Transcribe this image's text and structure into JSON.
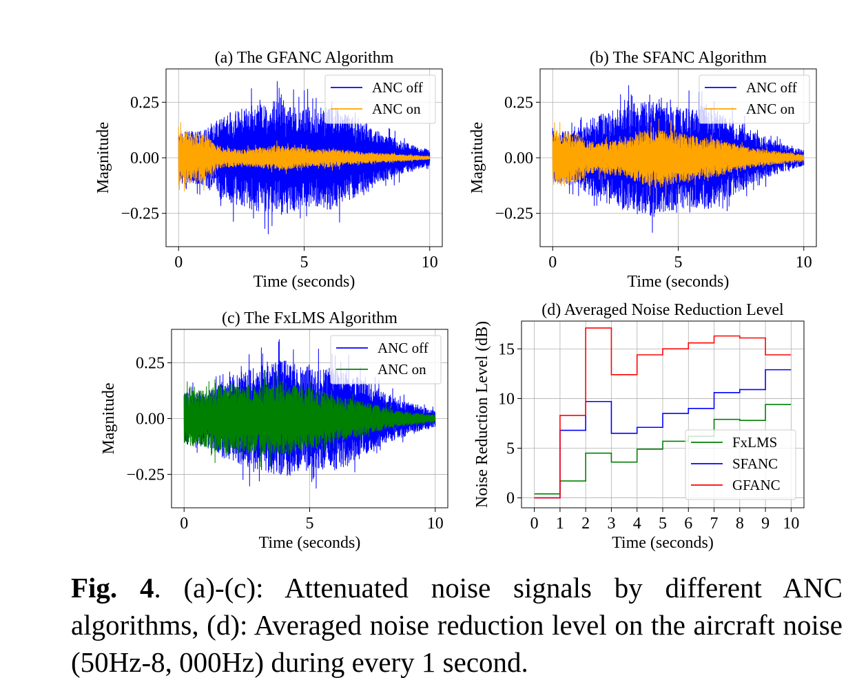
{
  "chart_data": [
    {
      "type": "line",
      "title": "(a) The GFANC Algorithm",
      "xlabel": "Time (seconds)",
      "ylabel": "Magnitude",
      "xlim": [
        -0.5,
        10.5
      ],
      "ylim": [
        -0.4,
        0.4
      ],
      "xticks": [
        0,
        5,
        10
      ],
      "yticks": [
        0.25,
        0.0,
        -0.25
      ],
      "ytick_labels": [
        "0.25",
        "0.00",
        "−0.25"
      ],
      "grid": true,
      "legend_position": "upper right",
      "series": [
        {
          "name": "ANC off",
          "color": "#0000ff",
          "x_range": [
            0,
            10
          ],
          "envelope_time": [
            0,
            1,
            1.5,
            2,
            2.5,
            3,
            3.5,
            4,
            4.5,
            5,
            5.5,
            6,
            6.5,
            7,
            7.5,
            8,
            8.5,
            9,
            9.5,
            10
          ],
          "envelope_amplitude": [
            0.16,
            0.17,
            0.24,
            0.28,
            0.3,
            0.33,
            0.34,
            0.37,
            0.34,
            0.32,
            0.31,
            0.33,
            0.3,
            0.25,
            0.21,
            0.16,
            0.13,
            0.1,
            0.07,
            0.05
          ]
        },
        {
          "name": "ANC on",
          "color": "#ffa500",
          "x_range": [
            0,
            10
          ],
          "envelope_time": [
            0,
            1,
            1.5,
            2,
            2.5,
            3,
            3.5,
            4,
            4.5,
            5,
            5.5,
            6,
            6.5,
            7,
            7.5,
            8,
            8.5,
            9,
            9.5,
            10
          ],
          "envelope_amplitude": [
            0.17,
            0.15,
            0.08,
            0.06,
            0.05,
            0.06,
            0.07,
            0.08,
            0.07,
            0.06,
            0.05,
            0.06,
            0.05,
            0.04,
            0.035,
            0.03,
            0.025,
            0.02,
            0.015,
            0.01
          ]
        }
      ]
    },
    {
      "type": "line",
      "title": "(b) The SFANC Algorithm",
      "xlabel": "Time (seconds)",
      "ylabel": "Magnitude",
      "xlim": [
        -0.5,
        10.5
      ],
      "ylim": [
        -0.4,
        0.4
      ],
      "xticks": [
        0,
        5,
        10
      ],
      "yticks": [
        0.25,
        0.0,
        -0.25
      ],
      "ytick_labels": [
        "0.25",
        "0.00",
        "−0.25"
      ],
      "grid": true,
      "legend_position": "upper right",
      "series": [
        {
          "name": "ANC off",
          "color": "#0000ff",
          "x_range": [
            0,
            10
          ],
          "envelope_time": [
            0,
            1,
            1.5,
            2,
            2.5,
            3,
            3.5,
            4,
            4.5,
            5,
            5.5,
            6,
            6.5,
            7,
            7.5,
            8,
            8.5,
            9,
            9.5,
            10
          ],
          "envelope_amplitude": [
            0.16,
            0.17,
            0.24,
            0.28,
            0.3,
            0.33,
            0.34,
            0.37,
            0.34,
            0.32,
            0.31,
            0.33,
            0.3,
            0.25,
            0.21,
            0.16,
            0.13,
            0.1,
            0.07,
            0.05
          ]
        },
        {
          "name": "ANC on",
          "color": "#ffa500",
          "x_range": [
            0,
            10
          ],
          "envelope_time": [
            0,
            1,
            1.5,
            2,
            2.5,
            3,
            3.5,
            4,
            4.5,
            5,
            5.5,
            6,
            6.5,
            7,
            7.5,
            8,
            8.5,
            9,
            9.5,
            10
          ],
          "envelope_amplitude": [
            0.17,
            0.15,
            0.1,
            0.1,
            0.11,
            0.13,
            0.16,
            0.19,
            0.18,
            0.16,
            0.14,
            0.13,
            0.12,
            0.1,
            0.08,
            0.06,
            0.05,
            0.04,
            0.03,
            0.02
          ]
        }
      ]
    },
    {
      "type": "line",
      "title": "(c) The FxLMS Algorithm",
      "xlabel": "Time (seconds)",
      "ylabel": "Magnitude",
      "xlim": [
        -0.5,
        10.5
      ],
      "ylim": [
        -0.4,
        0.4
      ],
      "xticks": [
        0,
        5,
        10
      ],
      "yticks": [
        0.25,
        0.0,
        -0.25
      ],
      "ytick_labels": [
        "0.25",
        "0.00",
        "−0.25"
      ],
      "grid": true,
      "legend_position": "upper right",
      "series": [
        {
          "name": "ANC off",
          "color": "#0000ff",
          "x_range": [
            0,
            10
          ],
          "envelope_time": [
            0,
            1,
            1.5,
            2,
            2.5,
            3,
            3.5,
            4,
            4.5,
            5,
            5.5,
            6,
            6.5,
            7,
            7.5,
            8,
            8.5,
            9,
            9.5,
            10
          ],
          "envelope_amplitude": [
            0.16,
            0.17,
            0.24,
            0.28,
            0.3,
            0.33,
            0.34,
            0.37,
            0.34,
            0.32,
            0.31,
            0.33,
            0.3,
            0.25,
            0.21,
            0.16,
            0.13,
            0.1,
            0.07,
            0.05
          ]
        },
        {
          "name": "ANC on",
          "color": "#008000",
          "x_range": [
            0,
            10
          ],
          "envelope_time": [
            0,
            1,
            1.5,
            2,
            2.5,
            3,
            3.5,
            4,
            4.5,
            5,
            5.5,
            6,
            6.5,
            7,
            7.5,
            8,
            8.5,
            9,
            9.5,
            10
          ],
          "envelope_amplitude": [
            0.17,
            0.18,
            0.22,
            0.22,
            0.21,
            0.22,
            0.22,
            0.23,
            0.21,
            0.19,
            0.17,
            0.15,
            0.13,
            0.11,
            0.09,
            0.07,
            0.05,
            0.04,
            0.03,
            0.02
          ]
        }
      ]
    },
    {
      "type": "line",
      "step": "post",
      "title": "(d) Averaged Noise Reduction Level",
      "xlabel": "Time (seconds)",
      "ylabel": "Noise Reduction Level (dB)",
      "xlim": [
        -0.5,
        10.5
      ],
      "ylim": [
        -1,
        17.8
      ],
      "xticks": [
        0,
        1,
        2,
        3,
        4,
        5,
        6,
        7,
        8,
        9,
        10
      ],
      "yticks": [
        0,
        5,
        10,
        15
      ],
      "grid": true,
      "legend_position": "lower right",
      "x": [
        0,
        1,
        2,
        3,
        4,
        5,
        6,
        7,
        8,
        9,
        10
      ],
      "series": [
        {
          "name": "FxLMS",
          "color": "#008000",
          "values": [
            0.4,
            1.7,
            4.5,
            3.6,
            4.9,
            5.7,
            6.2,
            7.9,
            7.8,
            9.4,
            9.4
          ]
        },
        {
          "name": "SFANC",
          "color": "#0000ff",
          "values": [
            0.0,
            6.8,
            9.7,
            6.5,
            7.1,
            8.5,
            9.0,
            10.6,
            10.9,
            12.9,
            12.9
          ]
        },
        {
          "name": "GFANC",
          "color": "#ff0000",
          "values": [
            0.0,
            8.3,
            17.1,
            12.4,
            14.4,
            15.0,
            15.6,
            16.3,
            16.1,
            14.4,
            14.4
          ]
        }
      ]
    }
  ],
  "caption": {
    "label": "Fig. 4",
    "text": ". (a)-(c): Attenuated noise signals by different ANC algorithms, (d): Averaged noise reduction level on the aircraft noise (50Hz-8, 000Hz) during every 1 second."
  }
}
